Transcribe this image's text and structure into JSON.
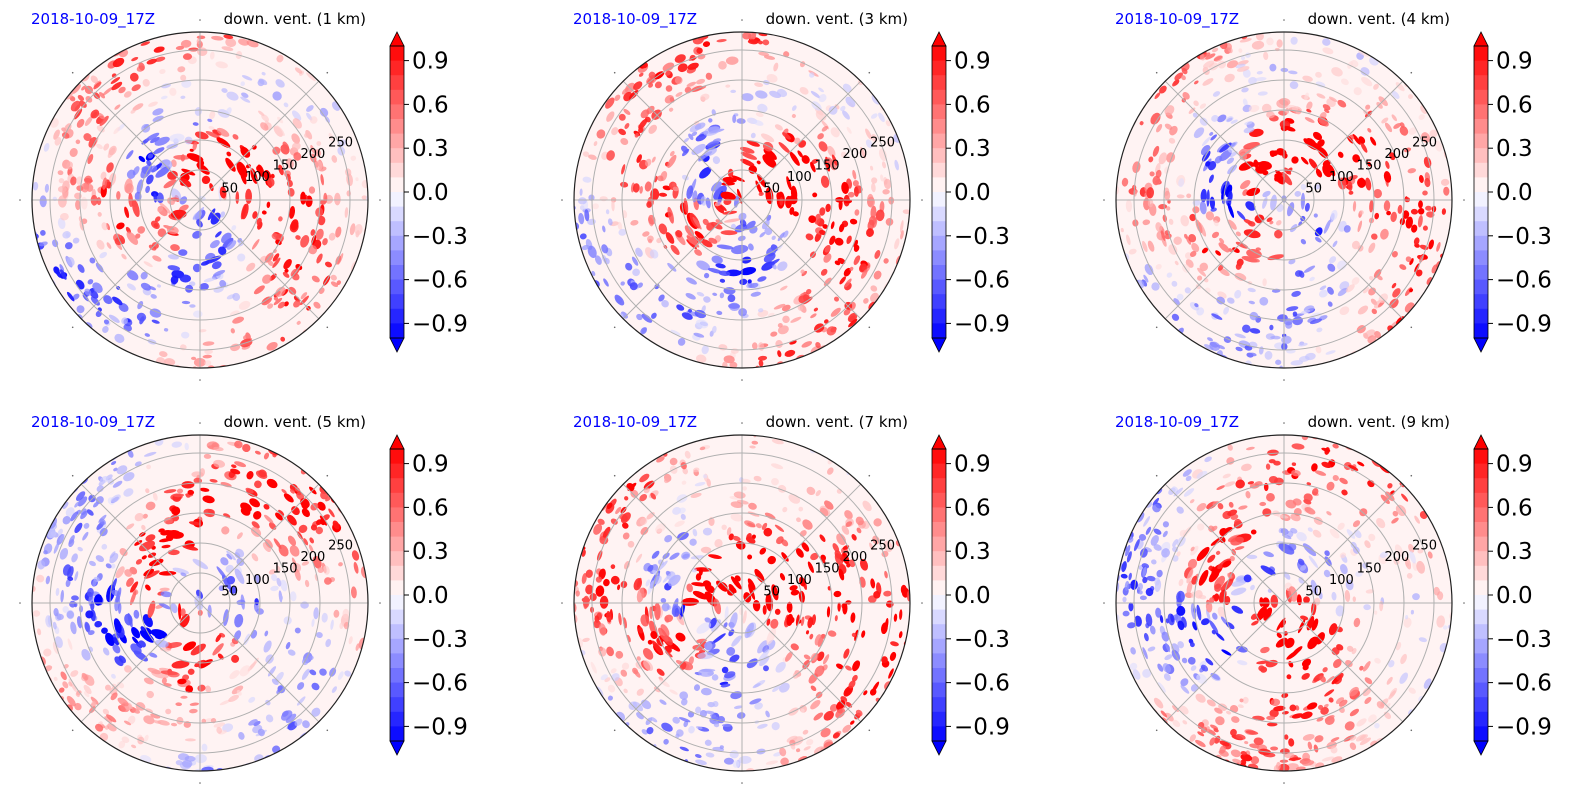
{
  "figure": {
    "panels": [
      {
        "id": "p1",
        "date": "2018-10-09_17Z",
        "title": "down. vent. (1 km)"
      },
      {
        "id": "p2",
        "date": "2018-10-09_17Z",
        "title": "down. vent. (3 km)"
      },
      {
        "id": "p3",
        "date": "2018-10-09_17Z",
        "title": "down. vent. (4 km)"
      },
      {
        "id": "p4",
        "date": "2018-10-09_17Z",
        "title": "down. vent. (5 km)"
      },
      {
        "id": "p5",
        "date": "2018-10-09_17Z",
        "title": "down. vent. (7 km)"
      },
      {
        "id": "p6",
        "date": "2018-10-09_17Z",
        "title": "down. vent. (9 km)"
      }
    ]
  },
  "colors": {
    "date_text": "#0000ff",
    "positive": "#ff0000",
    "negative": "#0000ff",
    "zero": "#fff3f3",
    "grid": "#b0b0b0"
  },
  "chart_data": [
    {
      "type": "heatmap",
      "projection": "polar",
      "title": "down. vent. (1 km)",
      "date": "2018-10-09_17Z",
      "radial_ticks": [
        "50",
        "100",
        "150",
        "200",
        "250"
      ],
      "radial_range": [
        0,
        280
      ],
      "grid": true,
      "colorbar": {
        "range": [
          -1.0,
          1.0
        ],
        "ticks": [
          "0.9",
          "0.6",
          "0.3",
          "0.0",
          "−0.3",
          "−0.6",
          "−0.9"
        ],
        "extend": "both"
      }
    },
    {
      "type": "heatmap",
      "projection": "polar",
      "title": "down. vent. (3 km)",
      "date": "2018-10-09_17Z",
      "radial_ticks": [
        "50",
        "100",
        "150",
        "200",
        "250"
      ],
      "radial_range": [
        0,
        280
      ],
      "grid": true,
      "colorbar": {
        "range": [
          -1.0,
          1.0
        ],
        "ticks": [
          "0.9",
          "0.6",
          "0.3",
          "0.0",
          "−0.3",
          "−0.6",
          "−0.9"
        ],
        "extend": "both"
      }
    },
    {
      "type": "heatmap",
      "projection": "polar",
      "title": "down. vent. (4 km)",
      "date": "2018-10-09_17Z",
      "radial_ticks": [
        "50",
        "100",
        "150",
        "200",
        "250"
      ],
      "radial_range": [
        0,
        280
      ],
      "grid": true,
      "colorbar": {
        "range": [
          -1.0,
          1.0
        ],
        "ticks": [
          "0.9",
          "0.6",
          "0.3",
          "0.0",
          "−0.3",
          "−0.6",
          "−0.9"
        ],
        "extend": "both"
      }
    },
    {
      "type": "heatmap",
      "projection": "polar",
      "title": "down. vent. (5 km)",
      "date": "2018-10-09_17Z",
      "radial_ticks": [
        "50",
        "100",
        "150",
        "200",
        "250"
      ],
      "radial_range": [
        0,
        280
      ],
      "grid": true,
      "colorbar": {
        "range": [
          -1.0,
          1.0
        ],
        "ticks": [
          "0.9",
          "0.6",
          "0.3",
          "0.0",
          "−0.3",
          "−0.6",
          "−0.9"
        ],
        "extend": "both"
      }
    },
    {
      "type": "heatmap",
      "projection": "polar",
      "title": "down. vent. (7 km)",
      "date": "2018-10-09_17Z",
      "radial_ticks": [
        "50",
        "100",
        "150",
        "200",
        "250"
      ],
      "radial_range": [
        0,
        280
      ],
      "grid": true,
      "colorbar": {
        "range": [
          -1.0,
          1.0
        ],
        "ticks": [
          "0.9",
          "0.6",
          "0.3",
          "0.0",
          "−0.3",
          "−0.6",
          "−0.9"
        ],
        "extend": "both"
      }
    },
    {
      "type": "heatmap",
      "projection": "polar",
      "title": "down. vent. (9 km)",
      "date": "2018-10-09_17Z",
      "radial_ticks": [
        "50",
        "100",
        "150",
        "200",
        "250"
      ],
      "radial_range": [
        0,
        280
      ],
      "grid": true,
      "colorbar": {
        "range": [
          -1.0,
          1.0
        ],
        "ticks": [
          "0.9",
          "0.6",
          "0.3",
          "0.0",
          "−0.3",
          "−0.6",
          "−0.9"
        ],
        "extend": "both"
      }
    }
  ]
}
